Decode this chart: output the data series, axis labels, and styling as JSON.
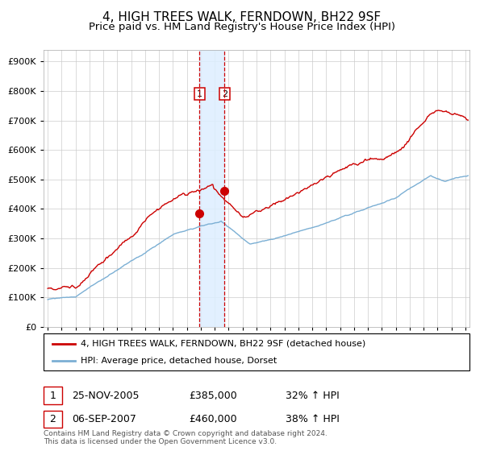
{
  "title": "4, HIGH TREES WALK, FERNDOWN, BH22 9SF",
  "subtitle": "Price paid vs. HM Land Registry's House Price Index (HPI)",
  "title_fontsize": 11,
  "subtitle_fontsize": 9.5,
  "legend_line1": "4, HIGH TREES WALK, FERNDOWN, BH22 9SF (detached house)",
  "legend_line2": "HPI: Average price, detached house, Dorset",
  "sale1_date": "25-NOV-2005",
  "sale1_price": "£385,000",
  "sale1_hpi": "32% ↑ HPI",
  "sale2_date": "06-SEP-2007",
  "sale2_price": "£460,000",
  "sale2_hpi": "38% ↑ HPI",
  "footer": "Contains HM Land Registry data © Crown copyright and database right 2024.\nThis data is licensed under the Open Government Licence v3.0.",
  "red_color": "#cc0000",
  "blue_color": "#7bafd4",
  "highlight_color": "#ddeeff",
  "grid_color": "#cccccc",
  "ylim": [
    0,
    940000
  ],
  "xlim_start": 1994.7,
  "xlim_end": 2025.3,
  "sale1_x": 2005.9,
  "sale1_y": 385000,
  "sale2_x": 2007.7,
  "sale2_y": 460000
}
